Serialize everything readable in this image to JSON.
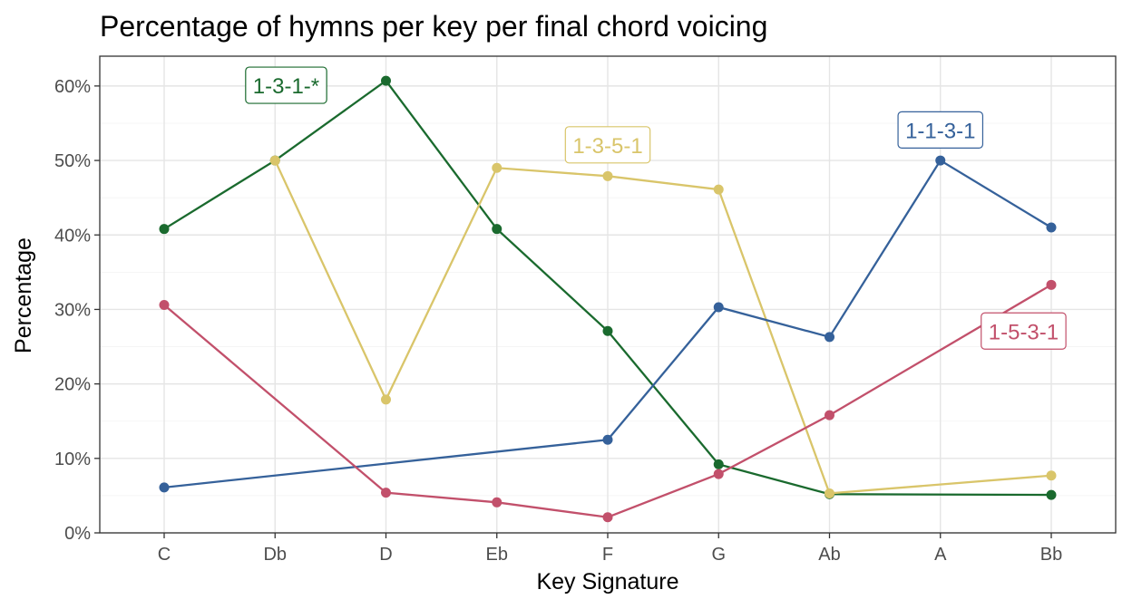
{
  "chart_data": {
    "type": "line",
    "title": "Percentage of hymns per key per final chord voicing",
    "xlabel": "Key Signature",
    "ylabel": "Percentage",
    "ylim": [
      0,
      64
    ],
    "yticks": [
      0,
      10,
      20,
      30,
      40,
      50,
      60
    ],
    "ytick_labels": [
      "0%",
      "10%",
      "20%",
      "30%",
      "40%",
      "50%",
      "60%"
    ],
    "categories": [
      "C",
      "Db",
      "D",
      "Eb",
      "F",
      "G",
      "Ab",
      "A",
      "Bb"
    ],
    "grid": true,
    "legend": "none (direct labels on lines)",
    "series": [
      {
        "name": "1-3-1-*",
        "color": "#1a6a2e",
        "points": [
          {
            "x": "C",
            "y": 40.8
          },
          {
            "x": "Db",
            "y": 50.0
          },
          {
            "x": "D",
            "y": 60.7
          },
          {
            "x": "Eb",
            "y": 40.8
          },
          {
            "x": "F",
            "y": 27.1
          },
          {
            "x": "G",
            "y": 9.2
          },
          {
            "x": "Ab",
            "y": 5.2
          },
          {
            "x": "Bb",
            "y": 5.1
          }
        ]
      },
      {
        "name": "1-3-5-1",
        "color": "#d9c56a",
        "points": [
          {
            "x": "Db",
            "y": 50.0
          },
          {
            "x": "D",
            "y": 17.9
          },
          {
            "x": "Eb",
            "y": 49.0
          },
          {
            "x": "F",
            "y": 47.9
          },
          {
            "x": "G",
            "y": 46.1
          },
          {
            "x": "Ab",
            "y": 5.3
          },
          {
            "x": "Bb",
            "y": 7.7
          }
        ]
      },
      {
        "name": "1-1-3-1",
        "color": "#35619a",
        "points": [
          {
            "x": "C",
            "y": 6.1
          },
          {
            "x": "F",
            "y": 12.5
          },
          {
            "x": "G",
            "y": 30.3
          },
          {
            "x": "Ab",
            "y": 26.3
          },
          {
            "x": "A",
            "y": 50.0
          },
          {
            "x": "Bb",
            "y": 41.0
          }
        ]
      },
      {
        "name": "1-5-3-1",
        "color": "#c2506b",
        "points": [
          {
            "x": "C",
            "y": 30.6
          },
          {
            "x": "D",
            "y": 5.4
          },
          {
            "x": "Eb",
            "y": 4.1
          },
          {
            "x": "F",
            "y": 2.1
          },
          {
            "x": "G",
            "y": 7.9
          },
          {
            "x": "Ab",
            "y": 15.8
          },
          {
            "x": "Bb",
            "y": 33.3
          }
        ]
      }
    ],
    "labels": [
      {
        "series": "1-3-1-*",
        "text": "1-3-1-*",
        "x": "Db",
        "x_offset": 0.1,
        "y": 60.1
      },
      {
        "series": "1-3-5-1",
        "text": "1-3-5-1",
        "x": "F",
        "x_offset": 0.0,
        "y": 52.1
      },
      {
        "series": "1-1-3-1",
        "text": "1-1-3-1",
        "x": "A",
        "x_offset": 0.0,
        "y": 54.1
      },
      {
        "series": "1-5-3-1",
        "text": "1-5-3-1",
        "x": "Bb",
        "x_offset": -0.25,
        "y": 27.1
      }
    ]
  }
}
